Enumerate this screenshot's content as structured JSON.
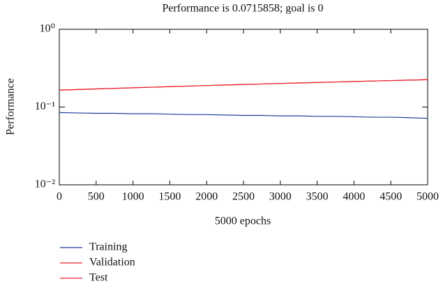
{
  "chart_data": {
    "type": "line",
    "title": "Performance is 0.0715858; goal is 0",
    "x_label": "5000 epochs",
    "y_label": "Performance",
    "x": [
      0,
      250,
      500,
      750,
      1000,
      1250,
      1500,
      1750,
      2000,
      2250,
      2500,
      2750,
      3000,
      3250,
      3500,
      3750,
      4000,
      4250,
      4500,
      4750,
      5000
    ],
    "series": [
      {
        "name": "Training",
        "color": "#1f3f9f",
        "values": [
          0.085,
          0.084,
          0.083,
          0.083,
          0.082,
          0.082,
          0.081,
          0.08,
          0.08,
          0.079,
          0.078,
          0.078,
          0.077,
          0.077,
          0.076,
          0.076,
          0.075,
          0.074,
          0.074,
          0.073,
          0.0716
        ]
      },
      {
        "name": "Validation",
        "color": "#e8202a",
        "values": [
          0.165,
          0.168,
          0.171,
          0.174,
          0.177,
          0.18,
          0.183,
          0.186,
          0.189,
          0.192,
          0.195,
          0.198,
          0.201,
          0.204,
          0.207,
          0.21,
          0.213,
          0.216,
          0.219,
          0.222,
          0.225
        ]
      },
      {
        "name": "Test",
        "color": "#e8202a",
        "values": [
          0.165,
          0.168,
          0.171,
          0.174,
          0.177,
          0.18,
          0.183,
          0.186,
          0.189,
          0.192,
          0.195,
          0.198,
          0.201,
          0.204,
          0.207,
          0.21,
          0.213,
          0.216,
          0.219,
          0.222,
          0.225
        ]
      }
    ],
    "xlim": [
      0,
      5000
    ],
    "xticks": [
      0,
      500,
      1000,
      1500,
      2000,
      2500,
      3000,
      3500,
      4000,
      4500,
      5000
    ],
    "ylim": [
      0.01,
      1
    ],
    "yticks": [
      {
        "value": 0.01,
        "label": "10⁻²"
      },
      {
        "value": 0.1,
        "label": "10⁻¹"
      },
      {
        "value": 1,
        "label": "10⁰"
      }
    ],
    "log_y": true,
    "legend": "below"
  }
}
